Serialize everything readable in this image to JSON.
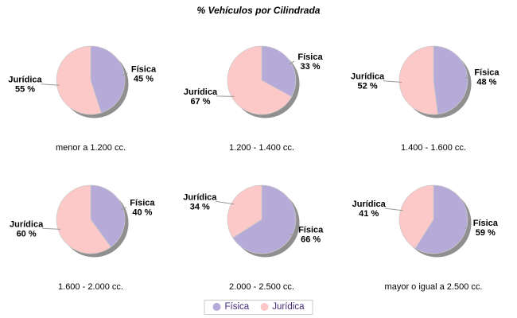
{
  "header": {
    "title": "% Vehículos por Cilindrada"
  },
  "palette": {
    "fisica": "#b6abd8",
    "juridica": "#fdc9c8",
    "shadow": "#8f8f8f",
    "slice_outline": "#c9c9c9",
    "leader_line": "#9a9a9a",
    "legend_text": "#44287a",
    "legend_border": "#cccccc"
  },
  "legend": {
    "items": [
      {
        "label": "Física",
        "color": "#b6abd8"
      },
      {
        "label": "Jurídica",
        "color": "#fdc9c8"
      }
    ]
  },
  "chart_data": [
    {
      "type": "pie",
      "title": "menor a 1.200 cc.",
      "labels": [
        "Física",
        "Jurídica"
      ],
      "values": [
        45,
        55
      ],
      "value_suffix": " %"
    },
    {
      "type": "pie",
      "title": "1.200 - 1.400 cc.",
      "labels": [
        "Física",
        "Jurídica"
      ],
      "values": [
        33,
        67
      ],
      "value_suffix": " %"
    },
    {
      "type": "pie",
      "title": "1.400 - 1.600 cc.",
      "labels": [
        "Física",
        "Jurídica"
      ],
      "values": [
        48,
        52
      ],
      "value_suffix": " %"
    },
    {
      "type": "pie",
      "title": "1.600 - 2.000 cc.",
      "labels": [
        "Física",
        "Jurídica"
      ],
      "values": [
        40,
        60
      ],
      "value_suffix": " %"
    },
    {
      "type": "pie",
      "title": "2.000 - 2.500 cc.",
      "labels": [
        "Física",
        "Jurídica"
      ],
      "values": [
        66,
        34
      ],
      "value_suffix": " %"
    },
    {
      "type": "pie",
      "title": "mayor o igual a 2.500 cc.",
      "labels": [
        "Física",
        "Jurídica"
      ],
      "values": [
        59,
        41
      ],
      "value_suffix": " %"
    }
  ]
}
